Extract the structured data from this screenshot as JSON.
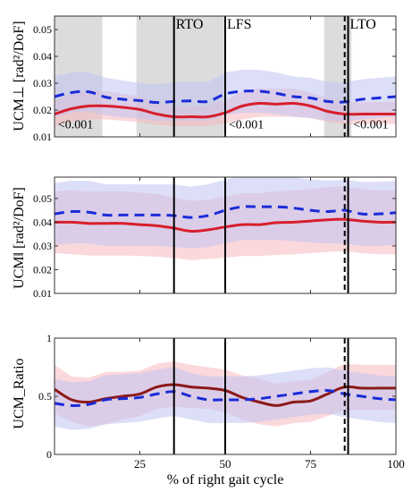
{
  "chart_data": [
    {
      "type": "line",
      "ylabel": "UCM⊥ [rad²/DoF]",
      "ylim": [
        0.01,
        0.055
      ],
      "xlim": [
        0,
        100
      ],
      "yticks": [
        0.01,
        0.02,
        0.03,
        0.04,
        0.05
      ],
      "ytick_labels": [
        "0.01",
        "0.02",
        "0.03",
        "0.04",
        "0.05"
      ],
      "xticks": [
        0,
        25,
        50,
        75,
        100
      ],
      "xtick_labels": [
        "",
        "",
        "",
        "",
        ""
      ],
      "shaded_regions": [
        [
          0,
          14
        ],
        [
          24,
          50
        ],
        [
          79,
          87
        ]
      ],
      "events": [
        {
          "x": 35,
          "label": "RTO",
          "style": "solid"
        },
        {
          "x": 50,
          "label": "LFS",
          "style": "solid"
        },
        {
          "x": 85,
          "label": "",
          "style": "dashed"
        },
        {
          "x": 86,
          "label": "LTO",
          "style": "solid"
        }
      ],
      "annotations": [
        {
          "text": "<0.001",
          "x": 1,
          "y": 0.0125
        },
        {
          "text": "<0.001",
          "x": 51,
          "y": 0.0125
        },
        {
          "text": "<0.001",
          "x": 87.5,
          "y": 0.0125
        }
      ],
      "x": [
        0,
        5,
        10,
        15,
        20,
        25,
        30,
        35,
        40,
        45,
        50,
        55,
        60,
        65,
        70,
        75,
        80,
        85,
        90,
        95,
        100
      ],
      "series": [
        {
          "color": "#d81e2c",
          "line": "solid",
          "band_color": "#f7b8bd",
          "values": [
            0.0185,
            0.0205,
            0.0215,
            0.0215,
            0.021,
            0.0202,
            0.0185,
            0.0175,
            0.0175,
            0.0175,
            0.019,
            0.0215,
            0.0225,
            0.0222,
            0.0225,
            0.0215,
            0.0195,
            0.0185,
            0.0185,
            0.0185,
            0.0185
          ],
          "lower": [
            0.014,
            0.0155,
            0.0165,
            0.0165,
            0.016,
            0.0155,
            0.0145,
            0.014,
            0.014,
            0.014,
            0.015,
            0.0165,
            0.0175,
            0.0175,
            0.0175,
            0.017,
            0.0155,
            0.0148,
            0.0148,
            0.0148,
            0.0148
          ],
          "upper": [
            0.0235,
            0.026,
            0.027,
            0.027,
            0.026,
            0.025,
            0.023,
            0.0215,
            0.0215,
            0.0215,
            0.0235,
            0.027,
            0.028,
            0.028,
            0.028,
            0.0265,
            0.0245,
            0.023,
            0.023,
            0.023,
            0.023
          ]
        },
        {
          "color": "#1a2bd8",
          "line": "dashed",
          "band_color": "#c1c5f2",
          "values": [
            0.025,
            0.0265,
            0.0268,
            0.0248,
            0.024,
            0.0235,
            0.0228,
            0.0232,
            0.0234,
            0.0232,
            0.026,
            0.027,
            0.027,
            0.0262,
            0.025,
            0.0245,
            0.0232,
            0.023,
            0.024,
            0.0245,
            0.025
          ],
          "lower": [
            0.0175,
            0.019,
            0.0195,
            0.018,
            0.0172,
            0.0168,
            0.016,
            0.016,
            0.0162,
            0.016,
            0.018,
            0.019,
            0.019,
            0.0185,
            0.0175,
            0.017,
            0.016,
            0.0158,
            0.0165,
            0.017,
            0.0175
          ],
          "upper": [
            0.0325,
            0.034,
            0.034,
            0.032,
            0.031,
            0.03,
            0.0295,
            0.0305,
            0.0305,
            0.0305,
            0.034,
            0.035,
            0.035,
            0.034,
            0.0325,
            0.032,
            0.0305,
            0.0302,
            0.0315,
            0.032,
            0.0325
          ]
        }
      ]
    },
    {
      "type": "line",
      "ylabel": "UCM‖ [rad²/DoF]",
      "ylim": [
        0.01,
        0.059
      ],
      "xlim": [
        0,
        100
      ],
      "yticks": [
        0.01,
        0.02,
        0.03,
        0.04,
        0.05
      ],
      "ytick_labels": [
        "0.01",
        "0.02",
        "0.03",
        "0.04",
        "0.05"
      ],
      "xticks": [
        0,
        25,
        50,
        75,
        100
      ],
      "xtick_labels": [
        "",
        "",
        "",
        "",
        ""
      ],
      "shaded_regions": [],
      "events": [
        {
          "x": 35,
          "label": "",
          "style": "solid"
        },
        {
          "x": 50,
          "label": "",
          "style": "solid"
        },
        {
          "x": 85,
          "label": "",
          "style": "dashed"
        },
        {
          "x": 86,
          "label": "",
          "style": "solid"
        }
      ],
      "annotations": [],
      "x": [
        0,
        5,
        10,
        15,
        20,
        25,
        30,
        35,
        40,
        45,
        50,
        55,
        60,
        65,
        70,
        75,
        80,
        85,
        90,
        95,
        100
      ],
      "series": [
        {
          "color": "#d81e2c",
          "line": "solid",
          "band_color": "#f7b8bd",
          "values": [
            0.04,
            0.04,
            0.0395,
            0.0395,
            0.0395,
            0.039,
            0.0385,
            0.0375,
            0.0362,
            0.0368,
            0.038,
            0.039,
            0.039,
            0.0398,
            0.04,
            0.0405,
            0.041,
            0.0412,
            0.0405,
            0.04,
            0.04
          ],
          "lower": [
            0.027,
            0.0265,
            0.026,
            0.026,
            0.026,
            0.0258,
            0.0255,
            0.025,
            0.024,
            0.0245,
            0.025,
            0.0258,
            0.0258,
            0.0262,
            0.0265,
            0.027,
            0.0275,
            0.0278,
            0.027,
            0.0265,
            0.0265
          ],
          "upper": [
            0.053,
            0.0535,
            0.053,
            0.053,
            0.053,
            0.0525,
            0.052,
            0.0505,
            0.049,
            0.0495,
            0.051,
            0.0522,
            0.0522,
            0.053,
            0.0535,
            0.054,
            0.0548,
            0.055,
            0.054,
            0.0535,
            0.0535
          ]
        },
        {
          "color": "#1a2bd8",
          "line": "dashed",
          "band_color": "#c1c5f2",
          "values": [
            0.0435,
            0.0445,
            0.0442,
            0.043,
            0.043,
            0.043,
            0.043,
            0.0428,
            0.042,
            0.0428,
            0.045,
            0.0465,
            0.0465,
            0.0465,
            0.046,
            0.045,
            0.0445,
            0.045,
            0.0435,
            0.0435,
            0.044
          ],
          "lower": [
            0.0305,
            0.031,
            0.031,
            0.03,
            0.03,
            0.03,
            0.03,
            0.0295,
            0.029,
            0.0295,
            0.031,
            0.0325,
            0.0325,
            0.0325,
            0.032,
            0.0315,
            0.031,
            0.031,
            0.03,
            0.03,
            0.0305
          ],
          "upper": [
            0.0565,
            0.0575,
            0.0575,
            0.056,
            0.056,
            0.056,
            0.056,
            0.056,
            0.055,
            0.056,
            0.058,
            0.0595,
            0.0595,
            0.0595,
            0.059,
            0.058,
            0.0575,
            0.058,
            0.057,
            0.057,
            0.0575
          ]
        }
      ]
    },
    {
      "type": "line",
      "ylabel": "UCM_Ratio",
      "xlabel": "% of right gait cycle",
      "ylim": [
        0,
        1
      ],
      "xlim": [
        0,
        100
      ],
      "yticks": [
        0,
        0.5,
        1
      ],
      "ytick_labels": [
        "0",
        "0.5",
        "1"
      ],
      "xticks": [
        0,
        25,
        50,
        75,
        100
      ],
      "xtick_labels": [
        "",
        "25",
        "50",
        "75",
        "100"
      ],
      "shaded_regions": [],
      "events": [
        {
          "x": 35,
          "label": "",
          "style": "solid"
        },
        {
          "x": 50,
          "label": "",
          "style": "solid"
        },
        {
          "x": 85,
          "label": "",
          "style": "dashed"
        },
        {
          "x": 86,
          "label": "",
          "style": "solid"
        }
      ],
      "annotations": [],
      "x": [
        0,
        5,
        10,
        15,
        20,
        25,
        30,
        35,
        40,
        45,
        50,
        55,
        60,
        65,
        70,
        75,
        80,
        85,
        90,
        95,
        100
      ],
      "series": [
        {
          "color": "#8b1a1a",
          "line": "solid",
          "band_color": "#f7b8bd",
          "values": [
            0.56,
            0.47,
            0.45,
            0.48,
            0.5,
            0.52,
            0.58,
            0.6,
            0.58,
            0.57,
            0.55,
            0.49,
            0.45,
            0.42,
            0.45,
            0.46,
            0.52,
            0.58,
            0.57,
            0.57,
            0.57
          ],
          "lower": [
            0.35,
            0.28,
            0.24,
            0.26,
            0.3,
            0.33,
            0.39,
            0.41,
            0.4,
            0.39,
            0.36,
            0.3,
            0.26,
            0.24,
            0.27,
            0.28,
            0.33,
            0.38,
            0.38,
            0.38,
            0.38
          ],
          "upper": [
            0.77,
            0.67,
            0.66,
            0.71,
            0.71,
            0.72,
            0.78,
            0.8,
            0.77,
            0.75,
            0.73,
            0.68,
            0.65,
            0.61,
            0.63,
            0.64,
            0.71,
            0.78,
            0.77,
            0.77,
            0.77
          ]
        },
        {
          "color": "#1a2bd8",
          "line": "dashed",
          "band_color": "#c1c5f2",
          "values": [
            0.44,
            0.42,
            0.43,
            0.47,
            0.48,
            0.49,
            0.52,
            0.54,
            0.5,
            0.47,
            0.47,
            0.47,
            0.48,
            0.5,
            0.52,
            0.54,
            0.55,
            0.52,
            0.5,
            0.48,
            0.47
          ],
          "lower": [
            0.24,
            0.21,
            0.22,
            0.26,
            0.27,
            0.28,
            0.31,
            0.33,
            0.3,
            0.27,
            0.27,
            0.27,
            0.28,
            0.3,
            0.32,
            0.34,
            0.35,
            0.32,
            0.3,
            0.28,
            0.27
          ],
          "upper": [
            0.65,
            0.62,
            0.63,
            0.68,
            0.69,
            0.7,
            0.73,
            0.75,
            0.7,
            0.67,
            0.67,
            0.67,
            0.68,
            0.7,
            0.72,
            0.74,
            0.75,
            0.72,
            0.7,
            0.68,
            0.67
          ]
        }
      ]
    }
  ]
}
